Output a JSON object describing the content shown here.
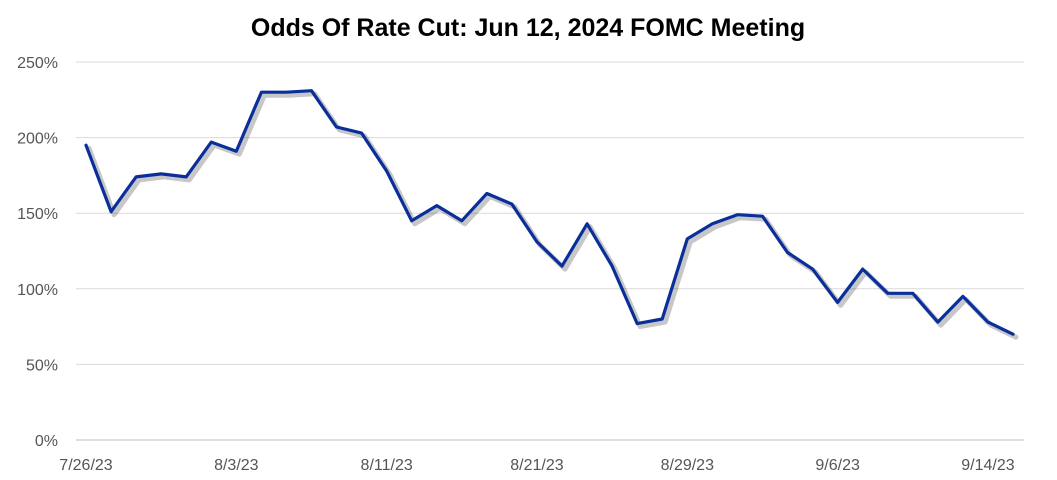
{
  "chart_data": {
    "type": "line",
    "title": "Odds Of Rate Cut: Jun 12, 2024 FOMC Meeting",
    "xlabel": "",
    "ylabel": "",
    "ylim": [
      0,
      250
    ],
    "y_ticks": [
      0,
      50,
      100,
      150,
      200,
      250
    ],
    "y_tick_labels": [
      "0%",
      "50%",
      "100%",
      "150%",
      "200%",
      "250%"
    ],
    "x_tick_labels": [
      "7/26/23",
      "8/3/23",
      "8/11/23",
      "8/21/23",
      "8/29/23",
      "9/6/23",
      "9/14/23"
    ],
    "x_tick_indices": [
      0,
      6,
      12,
      18,
      24,
      30,
      36
    ],
    "grid": true,
    "legend": "none",
    "series": [
      {
        "color": "#0a2f9a",
        "values": [
          195,
          151,
          174,
          176,
          174,
          197,
          191,
          230,
          230,
          231,
          207,
          203,
          178,
          145,
          155,
          145,
          163,
          156,
          131,
          115,
          143,
          115,
          77,
          80,
          133,
          143,
          149,
          148,
          124,
          113,
          91,
          113,
          97,
          97,
          78,
          95,
          78,
          70
        ]
      }
    ]
  }
}
